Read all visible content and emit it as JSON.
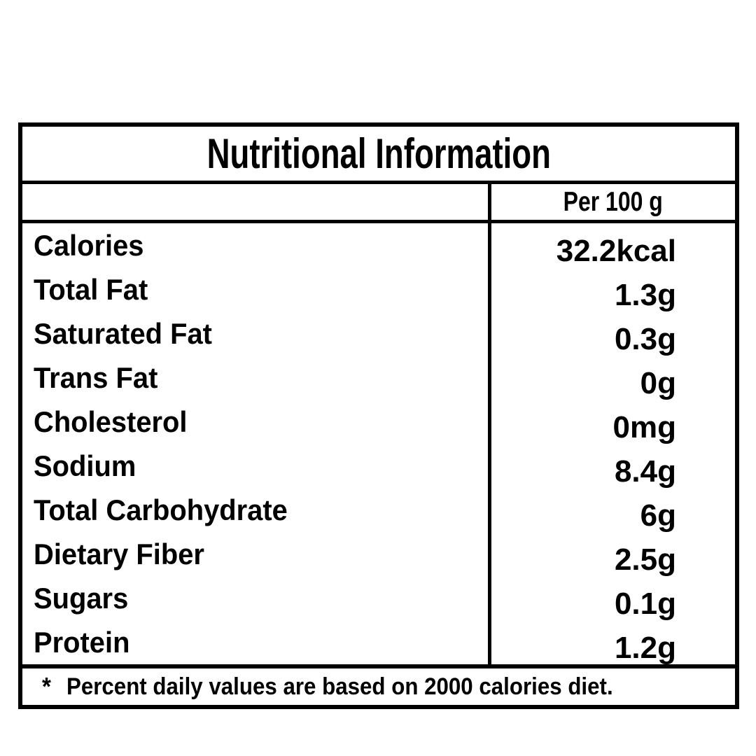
{
  "label": {
    "title": "Nutritional Information",
    "column_header": "Per 100 g",
    "rows": [
      {
        "name": "Calories",
        "value": "32.2kcal"
      },
      {
        "name": "Total Fat",
        "value": "1.3g"
      },
      {
        "name": "Saturated Fat",
        "value": "0.3g"
      },
      {
        "name": "Trans Fat",
        "value": "0g"
      },
      {
        "name": "Cholesterol",
        "value": "0mg"
      },
      {
        "name": "Sodium",
        "value": "8.4g"
      },
      {
        "name": "Total Carbohydrate",
        "value": "6g"
      },
      {
        "name": "Dietary Fiber",
        "value": "2.5g"
      },
      {
        "name": "Sugars",
        "value": "0.1g"
      },
      {
        "name": "Protein",
        "value": "1.2g"
      }
    ],
    "footnote_marker": "*",
    "footnote": "Percent daily values are based on 2000 calories diet.",
    "colors": {
      "text": "#000000",
      "border": "#000000",
      "background": "#ffffff"
    }
  }
}
